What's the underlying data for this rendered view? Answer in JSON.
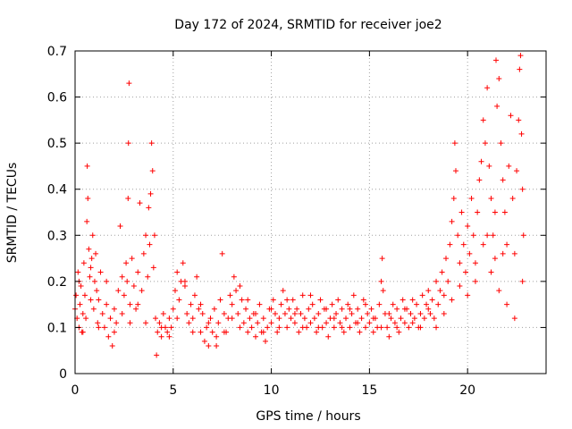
{
  "chart_data": {
    "type": "scatter",
    "title": "Day 172 of 2024, SRMTID for receiver joe2",
    "xlabel": "GPS time / hours",
    "ylabel": "SRMTID / TECUs",
    "xlim": [
      0,
      24
    ],
    "ylim": [
      0,
      0.7
    ],
    "xticks": [
      0,
      5,
      10,
      15,
      20
    ],
    "yticks": [
      0,
      0.1,
      0.2,
      0.3,
      0.4,
      0.5,
      0.6,
      0.7
    ],
    "xtick_labels": [
      "0",
      "5",
      "10",
      "15",
      "20"
    ],
    "ytick_labels": [
      "0",
      "0.1",
      "0.2",
      "0.3",
      "0.4",
      "0.5",
      "0.6",
      "0.7"
    ],
    "grid": true,
    "marker": "+",
    "color": "#ff0000",
    "series": [
      {
        "name": "SRMTID",
        "points": [
          [
            0.0,
            0.14
          ],
          [
            0.05,
            0.17
          ],
          [
            0.1,
            0.12
          ],
          [
            0.15,
            0.22
          ],
          [
            0.2,
            0.1
          ],
          [
            0.25,
            0.15
          ],
          [
            0.3,
            0.19
          ],
          [
            0.35,
            0.09
          ],
          [
            0.4,
            0.13
          ],
          [
            0.45,
            0.24
          ],
          [
            0.5,
            0.17
          ],
          [
            0.55,
            0.12
          ],
          [
            0.6,
            0.33
          ],
          [
            0.62,
            0.45
          ],
          [
            0.65,
            0.38
          ],
          [
            0.7,
            0.27
          ],
          [
            0.75,
            0.21
          ],
          [
            0.8,
            0.16
          ],
          [
            0.85,
            0.25
          ],
          [
            0.9,
            0.3
          ],
          [
            0.95,
            0.14
          ],
          [
            1.0,
            0.2
          ],
          [
            1.05,
            0.26
          ],
          [
            1.1,
            0.18
          ],
          [
            1.15,
            0.11
          ],
          [
            1.2,
            0.16
          ],
          [
            1.3,
            0.22
          ],
          [
            1.4,
            0.13
          ],
          [
            1.5,
            0.1
          ],
          [
            1.6,
            0.15
          ],
          [
            1.7,
            0.08
          ],
          [
            1.8,
            0.12
          ],
          [
            1.9,
            0.06
          ],
          [
            2.0,
            0.14
          ],
          [
            2.1,
            0.11
          ],
          [
            2.2,
            0.18
          ],
          [
            2.3,
            0.32
          ],
          [
            2.4,
            0.13
          ],
          [
            2.5,
            0.17
          ],
          [
            2.6,
            0.24
          ],
          [
            2.65,
            0.2
          ],
          [
            2.7,
            0.38
          ],
          [
            2.72,
            0.5
          ],
          [
            2.75,
            0.63
          ],
          [
            2.8,
            0.15
          ],
          [
            2.9,
            0.25
          ],
          [
            3.0,
            0.19
          ],
          [
            3.1,
            0.14
          ],
          [
            3.2,
            0.22
          ],
          [
            3.3,
            0.37
          ],
          [
            3.4,
            0.18
          ],
          [
            3.5,
            0.26
          ],
          [
            3.6,
            0.3
          ],
          [
            3.7,
            0.21
          ],
          [
            3.75,
            0.36
          ],
          [
            3.8,
            0.28
          ],
          [
            3.85,
            0.39
          ],
          [
            3.9,
            0.5
          ],
          [
            3.95,
            0.44
          ],
          [
            4.0,
            0.23
          ],
          [
            4.05,
            0.3
          ],
          [
            4.1,
            0.12
          ],
          [
            4.15,
            0.04
          ],
          [
            4.2,
            0.09
          ],
          [
            4.3,
            0.11
          ],
          [
            4.4,
            0.08
          ],
          [
            4.5,
            0.13
          ],
          [
            4.6,
            0.1
          ],
          [
            4.7,
            0.09
          ],
          [
            4.8,
            0.12
          ],
          [
            4.9,
            0.1
          ],
          [
            5.0,
            0.14
          ],
          [
            5.1,
            0.18
          ],
          [
            5.2,
            0.22
          ],
          [
            5.3,
            0.16
          ],
          [
            5.4,
            0.2
          ],
          [
            5.5,
            0.24
          ],
          [
            5.6,
            0.19
          ],
          [
            5.7,
            0.13
          ],
          [
            5.8,
            0.11
          ],
          [
            5.9,
            0.15
          ],
          [
            6.0,
            0.12
          ],
          [
            6.1,
            0.17
          ],
          [
            6.2,
            0.21
          ],
          [
            6.3,
            0.14
          ],
          [
            6.4,
            0.09
          ],
          [
            6.5,
            0.13
          ],
          [
            6.6,
            0.07
          ],
          [
            6.7,
            0.1
          ],
          [
            6.8,
            0.06
          ],
          [
            6.9,
            0.12
          ],
          [
            7.0,
            0.09
          ],
          [
            7.1,
            0.14
          ],
          [
            7.2,
            0.08
          ],
          [
            7.3,
            0.11
          ],
          [
            7.4,
            0.16
          ],
          [
            7.5,
            0.26
          ],
          [
            7.6,
            0.13
          ],
          [
            7.7,
            0.09
          ],
          [
            7.8,
            0.12
          ],
          [
            7.9,
            0.17
          ],
          [
            8.0,
            0.15
          ],
          [
            8.1,
            0.21
          ],
          [
            8.2,
            0.18
          ],
          [
            8.3,
            0.13
          ],
          [
            8.4,
            0.19
          ],
          [
            8.5,
            0.16
          ],
          [
            8.6,
            0.11
          ],
          [
            8.7,
            0.14
          ],
          [
            8.8,
            0.09
          ],
          [
            8.9,
            0.12
          ],
          [
            9.0,
            0.1
          ],
          [
            9.1,
            0.13
          ],
          [
            9.2,
            0.08
          ],
          [
            9.3,
            0.11
          ],
          [
            9.4,
            0.15
          ],
          [
            9.5,
            0.09
          ],
          [
            9.6,
            0.12
          ],
          [
            9.7,
            0.07
          ],
          [
            9.8,
            0.1
          ],
          [
            9.9,
            0.14
          ],
          [
            10.0,
            0.11
          ],
          [
            10.1,
            0.16
          ],
          [
            10.2,
            0.13
          ],
          [
            10.3,
            0.09
          ],
          [
            10.4,
            0.12
          ],
          [
            10.5,
            0.15
          ],
          [
            10.6,
            0.18
          ],
          [
            10.7,
            0.13
          ],
          [
            10.8,
            0.1
          ],
          [
            10.9,
            0.14
          ],
          [
            11.0,
            0.12
          ],
          [
            11.1,
            0.16
          ],
          [
            11.2,
            0.11
          ],
          [
            11.3,
            0.14
          ],
          [
            11.4,
            0.09
          ],
          [
            11.5,
            0.13
          ],
          [
            11.6,
            0.17
          ],
          [
            11.7,
            0.12
          ],
          [
            11.8,
            0.1
          ],
          [
            11.9,
            0.14
          ],
          [
            12.0,
            0.11
          ],
          [
            12.1,
            0.15
          ],
          [
            12.2,
            0.12
          ],
          [
            12.3,
            0.09
          ],
          [
            12.4,
            0.13
          ],
          [
            12.5,
            0.16
          ],
          [
            12.6,
            0.1
          ],
          [
            12.7,
            0.14
          ],
          [
            12.8,
            0.11
          ],
          [
            12.9,
            0.08
          ],
          [
            13.0,
            0.12
          ],
          [
            13.1,
            0.15
          ],
          [
            13.2,
            0.1
          ],
          [
            13.3,
            0.13
          ],
          [
            13.4,
            0.16
          ],
          [
            13.5,
            0.11
          ],
          [
            13.6,
            0.14
          ],
          [
            13.7,
            0.09
          ],
          [
            13.8,
            0.12
          ],
          [
            13.9,
            0.15
          ],
          [
            14.0,
            0.1
          ],
          [
            14.1,
            0.13
          ],
          [
            14.2,
            0.17
          ],
          [
            14.3,
            0.11
          ],
          [
            14.4,
            0.14
          ],
          [
            14.5,
            0.09
          ],
          [
            14.6,
            0.12
          ],
          [
            14.7,
            0.16
          ],
          [
            14.8,
            0.1
          ],
          [
            14.9,
            0.13
          ],
          [
            15.0,
            0.11
          ],
          [
            15.1,
            0.14
          ],
          [
            15.2,
            0.09
          ],
          [
            15.3,
            0.12
          ],
          [
            15.4,
            0.1
          ],
          [
            15.5,
            0.15
          ],
          [
            15.6,
            0.2
          ],
          [
            15.65,
            0.25
          ],
          [
            15.7,
            0.18
          ],
          [
            15.8,
            0.13
          ],
          [
            15.9,
            0.1
          ],
          [
            16.0,
            0.08
          ],
          [
            16.1,
            0.12
          ],
          [
            16.2,
            0.15
          ],
          [
            16.3,
            0.11
          ],
          [
            16.4,
            0.14
          ],
          [
            16.5,
            0.09
          ],
          [
            16.6,
            0.12
          ],
          [
            16.7,
            0.16
          ],
          [
            16.8,
            0.11
          ],
          [
            16.9,
            0.14
          ],
          [
            17.0,
            0.1
          ],
          [
            17.1,
            0.13
          ],
          [
            17.2,
            0.16
          ],
          [
            17.3,
            0.12
          ],
          [
            17.4,
            0.15
          ],
          [
            17.5,
            0.1
          ],
          [
            17.6,
            0.13
          ],
          [
            17.7,
            0.17
          ],
          [
            17.8,
            0.12
          ],
          [
            17.9,
            0.15
          ],
          [
            18.0,
            0.18
          ],
          [
            18.1,
            0.13
          ],
          [
            18.2,
            0.16
          ],
          [
            18.3,
            0.12
          ],
          [
            18.4,
            0.2
          ],
          [
            18.5,
            0.15
          ],
          [
            18.6,
            0.18
          ],
          [
            18.7,
            0.22
          ],
          [
            18.8,
            0.17
          ],
          [
            18.9,
            0.25
          ],
          [
            19.0,
            0.2
          ],
          [
            19.1,
            0.28
          ],
          [
            19.2,
            0.33
          ],
          [
            19.3,
            0.38
          ],
          [
            19.35,
            0.5
          ],
          [
            19.4,
            0.44
          ],
          [
            19.5,
            0.3
          ],
          [
            19.6,
            0.24
          ],
          [
            19.7,
            0.35
          ],
          [
            19.8,
            0.28
          ],
          [
            19.9,
            0.22
          ],
          [
            20.0,
            0.32
          ],
          [
            20.1,
            0.26
          ],
          [
            20.2,
            0.38
          ],
          [
            20.3,
            0.3
          ],
          [
            20.4,
            0.24
          ],
          [
            20.5,
            0.35
          ],
          [
            20.6,
            0.42
          ],
          [
            20.7,
            0.46
          ],
          [
            20.8,
            0.55
          ],
          [
            20.9,
            0.5
          ],
          [
            21.0,
            0.62
          ],
          [
            21.1,
            0.45
          ],
          [
            21.2,
            0.38
          ],
          [
            21.3,
            0.3
          ],
          [
            21.4,
            0.25
          ],
          [
            21.45,
            0.68
          ],
          [
            21.5,
            0.58
          ],
          [
            21.6,
            0.64
          ],
          [
            21.7,
            0.5
          ],
          [
            21.8,
            0.42
          ],
          [
            21.9,
            0.35
          ],
          [
            22.0,
            0.28
          ],
          [
            22.1,
            0.45
          ],
          [
            22.2,
            0.56
          ],
          [
            22.3,
            0.38
          ],
          [
            22.4,
            0.26
          ],
          [
            22.5,
            0.44
          ],
          [
            22.6,
            0.55
          ],
          [
            22.65,
            0.66
          ],
          [
            22.7,
            0.69
          ],
          [
            22.75,
            0.52
          ],
          [
            22.8,
            0.4
          ],
          [
            22.85,
            0.3
          ],
          [
            0.2,
            0.2
          ],
          [
            0.4,
            0.09
          ],
          [
            0.8,
            0.23
          ],
          [
            1.2,
            0.1
          ],
          [
            1.6,
            0.2
          ],
          [
            2.0,
            0.09
          ],
          [
            2.4,
            0.21
          ],
          [
            2.8,
            0.11
          ],
          [
            3.2,
            0.15
          ],
          [
            3.6,
            0.11
          ],
          [
            4.4,
            0.1
          ],
          [
            4.8,
            0.08
          ],
          [
            5.2,
            0.12
          ],
          [
            5.6,
            0.2
          ],
          [
            6.0,
            0.09
          ],
          [
            6.4,
            0.15
          ],
          [
            6.8,
            0.11
          ],
          [
            7.2,
            0.06
          ],
          [
            7.6,
            0.09
          ],
          [
            8.0,
            0.12
          ],
          [
            8.4,
            0.1
          ],
          [
            8.8,
            0.16
          ],
          [
            9.2,
            0.13
          ],
          [
            9.6,
            0.09
          ],
          [
            10.0,
            0.14
          ],
          [
            10.4,
            0.1
          ],
          [
            10.8,
            0.16
          ],
          [
            11.2,
            0.13
          ],
          [
            11.6,
            0.1
          ],
          [
            12.0,
            0.17
          ],
          [
            12.4,
            0.1
          ],
          [
            12.8,
            0.14
          ],
          [
            13.2,
            0.12
          ],
          [
            13.6,
            0.1
          ],
          [
            14.0,
            0.14
          ],
          [
            14.4,
            0.11
          ],
          [
            14.8,
            0.15
          ],
          [
            15.2,
            0.12
          ],
          [
            15.6,
            0.1
          ],
          [
            16.0,
            0.13
          ],
          [
            16.4,
            0.1
          ],
          [
            16.8,
            0.14
          ],
          [
            17.2,
            0.11
          ],
          [
            17.6,
            0.1
          ],
          [
            18.0,
            0.14
          ],
          [
            18.4,
            0.1
          ],
          [
            18.8,
            0.13
          ],
          [
            19.2,
            0.16
          ],
          [
            19.6,
            0.19
          ],
          [
            20.0,
            0.17
          ],
          [
            20.4,
            0.2
          ],
          [
            20.8,
            0.28
          ],
          [
            21.2,
            0.22
          ],
          [
            21.6,
            0.18
          ],
          [
            22.0,
            0.15
          ],
          [
            22.4,
            0.12
          ],
          [
            22.8,
            0.2
          ],
          [
            21.0,
            0.3
          ],
          [
            21.4,
            0.35
          ],
          [
            21.8,
            0.26
          ]
        ]
      }
    ]
  }
}
